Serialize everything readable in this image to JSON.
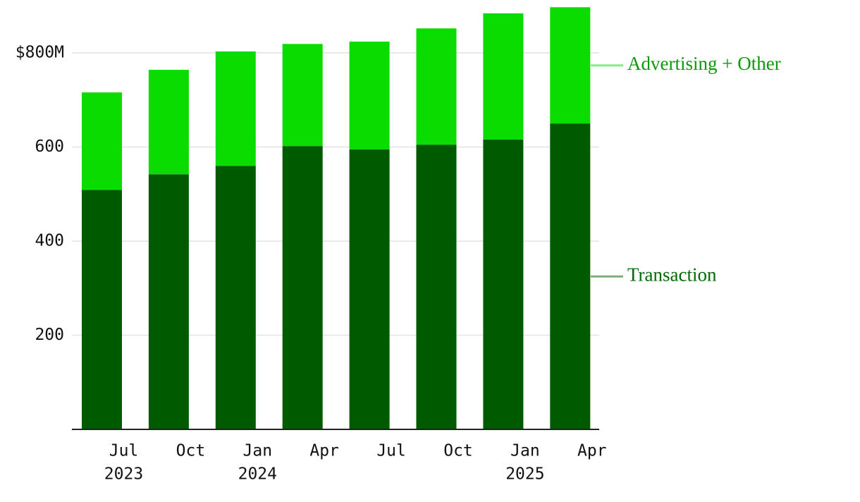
{
  "chart_data": {
    "type": "stacked_bar",
    "categories": [
      "Jul",
      "Oct",
      "Jan",
      "Apr",
      "Jul",
      "Oct",
      "Jan",
      "Apr"
    ],
    "years": [
      "2023",
      null,
      "2024",
      null,
      null,
      null,
      "2025",
      null
    ],
    "series": [
      {
        "name": "Transaction",
        "color": "#005a00",
        "label_color": "#006a00",
        "values": [
          509,
          542,
          560,
          602,
          595,
          605,
          616,
          650
        ]
      },
      {
        "name": "Advertising + Other",
        "color": "#0adc00",
        "label_color": "#0a9a0a",
        "values": [
          207,
          222,
          243,
          217,
          229,
          247,
          268,
          247
        ]
      }
    ],
    "ylim": [
      0,
      900
    ],
    "yticks": [
      200,
      400,
      600,
      {
        "value": 800,
        "label": "$800M"
      }
    ],
    "grid": true
  }
}
